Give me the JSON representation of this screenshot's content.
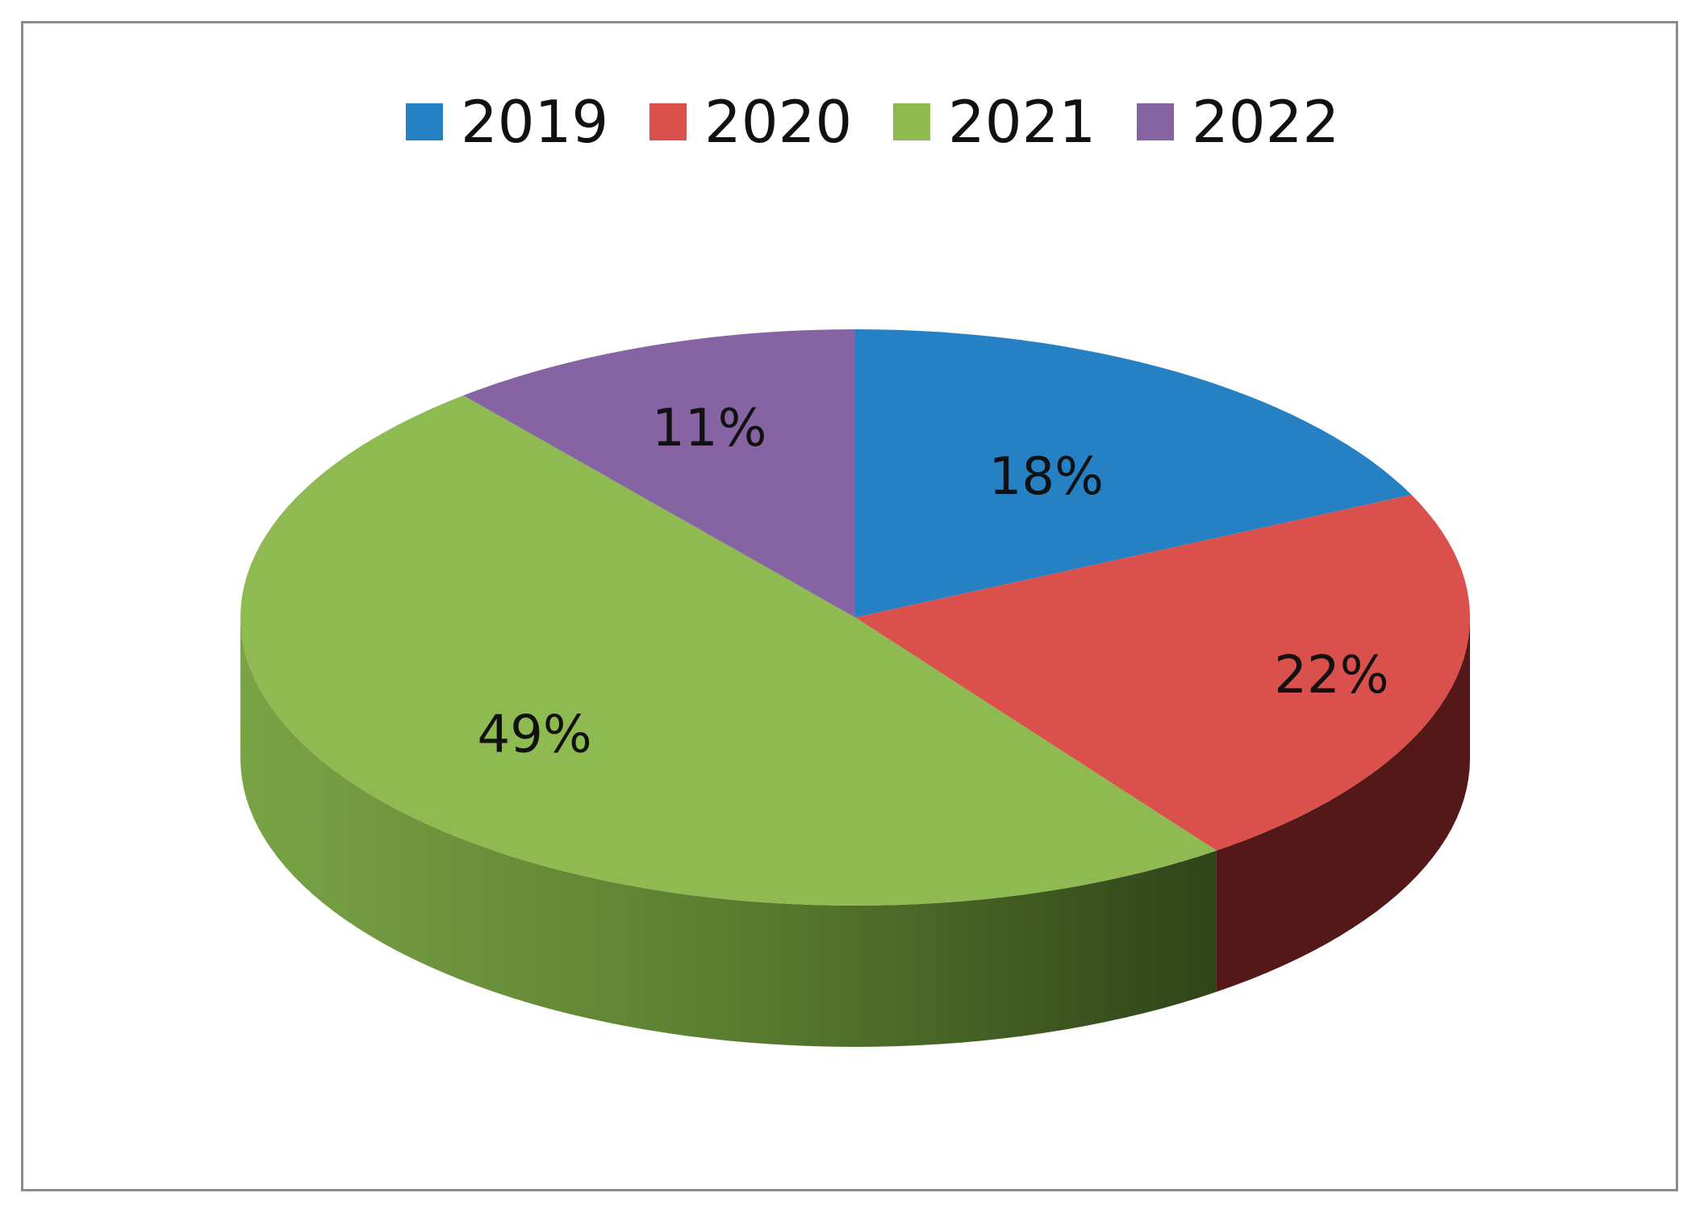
{
  "chart_data": {
    "type": "pie",
    "style": "3d",
    "categories": [
      "2019",
      "2020",
      "2021",
      "2022"
    ],
    "values": [
      18,
      22,
      49,
      11
    ],
    "data_labels": [
      "18%",
      "22%",
      "49%",
      "11%"
    ],
    "colors": [
      "#2581c4",
      "#d9504c",
      "#8fba51",
      "#8663a3"
    ],
    "side_colors": [
      "#164d75",
      "#541818",
      "#3a5520",
      "#4a3560"
    ],
    "legend": {
      "position": "top",
      "items": [
        {
          "label": "2019",
          "color": "#2581c4"
        },
        {
          "label": "2020",
          "color": "#d9504c"
        },
        {
          "label": "2021",
          "color": "#8fba51"
        },
        {
          "label": "2022",
          "color": "#8663a3"
        }
      ]
    }
  }
}
